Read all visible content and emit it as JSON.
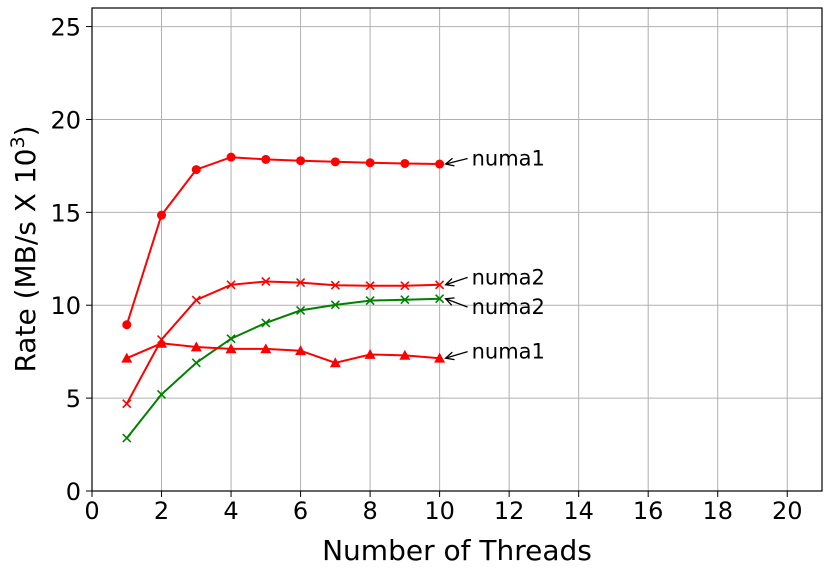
{
  "chart_data": {
    "type": "line",
    "xlabel": "Number of Threads",
    "ylabel_main": "Rate (MB/s X 10",
    "ylabel_sup": "3",
    "ylabel_close": ")",
    "xlim": [
      0,
      21
    ],
    "ylim": [
      0,
      26
    ],
    "xticks": [
      0,
      2,
      4,
      6,
      8,
      10,
      12,
      14,
      16,
      18,
      20
    ],
    "yticks": [
      0,
      5,
      10,
      15,
      20,
      25
    ],
    "grid": true,
    "series": [
      {
        "color": "#ff0000",
        "marker": "circle",
        "x": [
          1,
          2,
          3,
          4,
          5,
          6,
          7,
          8,
          9,
          10
        ],
        "y": [
          8.95,
          14.85,
          17.3,
          17.97,
          17.85,
          17.78,
          17.72,
          17.67,
          17.63,
          17.6
        ]
      },
      {
        "color": "#ff0000",
        "marker": "x",
        "x": [
          1,
          2,
          3,
          4,
          5,
          6,
          7,
          8,
          9,
          10
        ],
        "y": [
          4.7,
          8.15,
          10.28,
          11.1,
          11.28,
          11.22,
          11.08,
          11.05,
          11.05,
          11.1
        ]
      },
      {
        "color": "#008000",
        "marker": "x",
        "x": [
          1,
          2,
          3,
          4,
          5,
          6,
          7,
          8,
          9,
          10
        ],
        "y": [
          2.85,
          5.2,
          6.9,
          8.2,
          9.05,
          9.72,
          10.02,
          10.25,
          10.3,
          10.35
        ]
      },
      {
        "color": "#ff0000",
        "marker": "triangle",
        "x": [
          1,
          2,
          3,
          4,
          5,
          6,
          7,
          8,
          9,
          10
        ],
        "y": [
          7.15,
          7.95,
          7.75,
          7.65,
          7.65,
          7.55,
          6.9,
          7.35,
          7.3,
          7.15
        ]
      }
    ],
    "annotations": [
      {
        "text": "numa1",
        "x": 10,
        "y": 17.6,
        "text_y": 17.9
      },
      {
        "text": "numa2",
        "x": 10,
        "y": 11.1,
        "text_y": 11.5
      },
      {
        "text": "numa2",
        "x": 10,
        "y": 10.35,
        "text_y": 9.9
      },
      {
        "text": "numa1",
        "x": 10,
        "y": 7.15,
        "text_y": 7.5
      }
    ]
  }
}
